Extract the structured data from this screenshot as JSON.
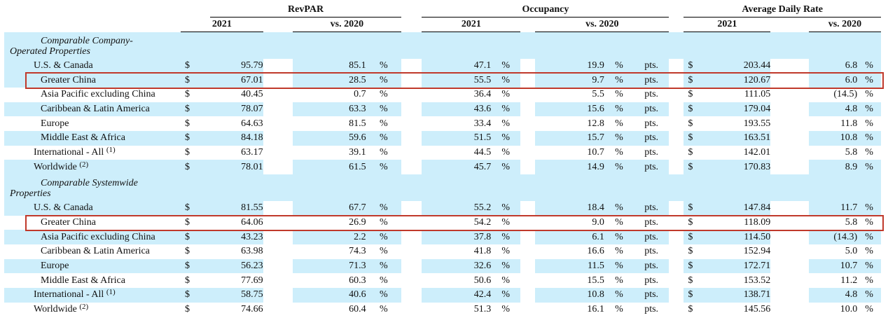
{
  "header": {
    "groups": [
      "RevPAR",
      "Occupancy",
      "Average Daily Rate"
    ],
    "year": "2021",
    "vs": "vs. 2020"
  },
  "currency": "$",
  "pct": "%",
  "pts": "pts.",
  "sections": [
    {
      "title_line1": "Comparable Company-",
      "title_line2": "Operated Properties",
      "rows": [
        {
          "region": "U.S. & Canada",
          "note": "",
          "revpar": "95.79",
          "revpar_vs": "85.1",
          "occ": "47.1",
          "occ_vs": "19.9",
          "adr": "203.44",
          "adr_vs": "6.8",
          "indent": 1,
          "shade": true,
          "highlight": false
        },
        {
          "region": "Greater China",
          "note": "",
          "revpar": "67.01",
          "revpar_vs": "28.5",
          "occ": "55.5",
          "occ_vs": "9.7",
          "adr": "120.67",
          "adr_vs": "6.0",
          "indent": 2,
          "shade": true,
          "highlight": true
        },
        {
          "region": "Asia Pacific excluding China",
          "note": "",
          "revpar": "40.45",
          "revpar_vs": "0.7",
          "occ": "36.4",
          "occ_vs": "5.5",
          "adr": "111.05",
          "adr_vs": "(14.5)",
          "indent": 2,
          "shade": false,
          "highlight": false
        },
        {
          "region": "Caribbean & Latin America",
          "note": "",
          "revpar": "78.07",
          "revpar_vs": "63.3",
          "occ": "43.6",
          "occ_vs": "15.6",
          "adr": "179.04",
          "adr_vs": "4.8",
          "indent": 2,
          "shade": true,
          "highlight": false
        },
        {
          "region": "Europe",
          "note": "",
          "revpar": "64.63",
          "revpar_vs": "81.5",
          "occ": "33.4",
          "occ_vs": "12.8",
          "adr": "193.55",
          "adr_vs": "11.8",
          "indent": 2,
          "shade": false,
          "highlight": false
        },
        {
          "region": "Middle East & Africa",
          "note": "",
          "revpar": "84.18",
          "revpar_vs": "59.6",
          "occ": "51.5",
          "occ_vs": "15.7",
          "adr": "163.51",
          "adr_vs": "10.8",
          "indent": 2,
          "shade": true,
          "highlight": false
        },
        {
          "region": "International - All",
          "note": "(1)",
          "revpar": "63.17",
          "revpar_vs": "39.1",
          "occ": "44.5",
          "occ_vs": "10.7",
          "adr": "142.01",
          "adr_vs": "5.8",
          "indent": 1,
          "shade": false,
          "highlight": false
        },
        {
          "region": "Worldwide",
          "note": "(2)",
          "revpar": "78.01",
          "revpar_vs": "61.5",
          "occ": "45.7",
          "occ_vs": "14.9",
          "adr": "170.83",
          "adr_vs": "8.9",
          "indent": 1,
          "shade": true,
          "highlight": false
        }
      ]
    },
    {
      "title_line1": "Comparable Systemwide",
      "title_line2": "Properties",
      "rows": [
        {
          "region": "U.S. & Canada",
          "note": "",
          "revpar": "81.55",
          "revpar_vs": "67.7",
          "occ": "55.2",
          "occ_vs": "18.4",
          "adr": "147.84",
          "adr_vs": "11.7",
          "indent": 1,
          "shade": true,
          "highlight": false
        },
        {
          "region": "Greater China",
          "note": "",
          "revpar": "64.06",
          "revpar_vs": "26.9",
          "occ": "54.2",
          "occ_vs": "9.0",
          "adr": "118.09",
          "adr_vs": "5.8",
          "indent": 2,
          "shade": false,
          "highlight": true
        },
        {
          "region": "Asia Pacific excluding China",
          "note": "",
          "revpar": "43.23",
          "revpar_vs": "2.2",
          "occ": "37.8",
          "occ_vs": "6.1",
          "adr": "114.50",
          "adr_vs": "(14.3)",
          "indent": 2,
          "shade": true,
          "highlight": false
        },
        {
          "region": "Caribbean & Latin America",
          "note": "",
          "revpar": "63.98",
          "revpar_vs": "74.3",
          "occ": "41.8",
          "occ_vs": "16.6",
          "adr": "152.94",
          "adr_vs": "5.0",
          "indent": 2,
          "shade": false,
          "highlight": false
        },
        {
          "region": "Europe",
          "note": "",
          "revpar": "56.23",
          "revpar_vs": "71.3",
          "occ": "32.6",
          "occ_vs": "11.5",
          "adr": "172.71",
          "adr_vs": "10.7",
          "indent": 2,
          "shade": true,
          "highlight": false
        },
        {
          "region": "Middle East & Africa",
          "note": "",
          "revpar": "77.69",
          "revpar_vs": "60.3",
          "occ": "50.6",
          "occ_vs": "15.5",
          "adr": "153.52",
          "adr_vs": "11.2",
          "indent": 2,
          "shade": false,
          "highlight": false
        },
        {
          "region": "International - All",
          "note": "(1)",
          "revpar": "58.75",
          "revpar_vs": "40.6",
          "occ": "42.4",
          "occ_vs": "10.8",
          "adr": "138.71",
          "adr_vs": "4.8",
          "indent": 1,
          "shade": true,
          "highlight": false
        },
        {
          "region": "Worldwide",
          "note": "(2)",
          "revpar": "74.66",
          "revpar_vs": "60.4",
          "occ": "51.3",
          "occ_vs": "16.1",
          "adr": "145.56",
          "adr_vs": "10.0",
          "indent": 1,
          "shade": false,
          "highlight": false
        }
      ]
    }
  ],
  "colors": {
    "shade": "#cdeefb",
    "highlight": "#c0392b"
  }
}
